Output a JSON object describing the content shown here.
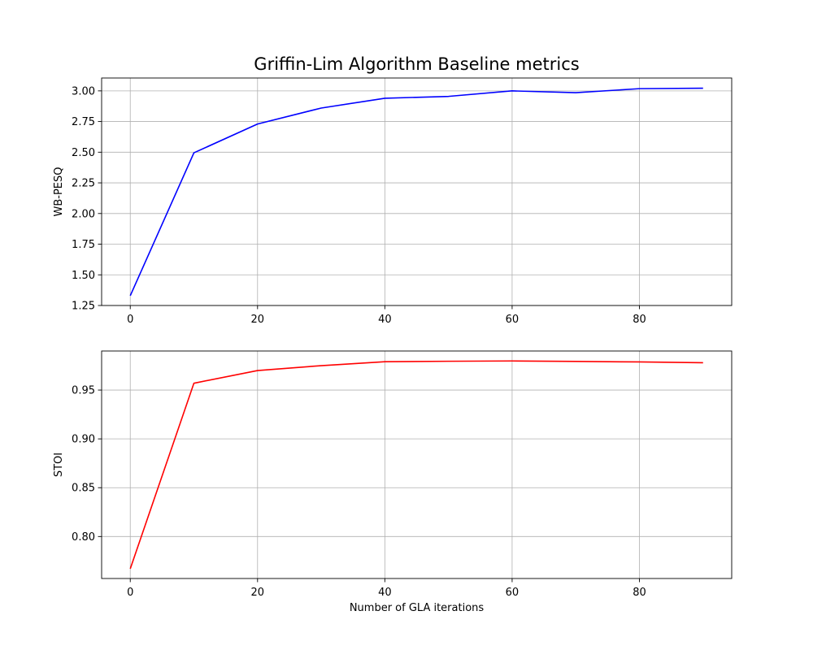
{
  "figure": {
    "title": "Griffin-Lim Algorithm Baseline metrics"
  },
  "chart_data": [
    {
      "type": "line",
      "title": "",
      "xlabel": "",
      "ylabel": "WB-PESQ",
      "x": [
        0,
        10,
        20,
        30,
        40,
        50,
        60,
        70,
        80,
        90
      ],
      "series": [
        {
          "values": [
            1.33,
            2.495,
            2.73,
            2.86,
            2.94,
            2.955,
            3.0,
            2.985,
            3.018,
            3.022
          ],
          "color": "#0000ff"
        }
      ],
      "xlim": [
        -4.5,
        94.5
      ],
      "ylim": [
        1.25,
        3.105
      ],
      "xticks": [
        0,
        20,
        40,
        60,
        80
      ],
      "yticks": [
        1.25,
        1.5,
        1.75,
        2.0,
        2.25,
        2.5,
        2.75,
        3.0
      ],
      "xtick_labels": [
        "0",
        "20",
        "40",
        "60",
        "80"
      ],
      "ytick_labels": [
        "1.25",
        "1.50",
        "1.75",
        "2.00",
        "2.25",
        "2.50",
        "2.75",
        "3.00"
      ],
      "grid": true
    },
    {
      "type": "line",
      "title": "",
      "xlabel": "Number of GLA iterations",
      "ylabel": "STOI",
      "x": [
        0,
        10,
        20,
        30,
        40,
        50,
        60,
        70,
        80,
        90
      ],
      "series": [
        {
          "values": [
            0.767,
            0.957,
            0.97,
            0.975,
            0.979,
            0.9795,
            0.9798,
            0.9793,
            0.9788,
            0.978
          ],
          "color": "#ff0000"
        }
      ],
      "xlim": [
        -4.5,
        94.5
      ],
      "ylim": [
        0.757,
        0.99
      ],
      "xticks": [
        0,
        20,
        40,
        60,
        80
      ],
      "yticks": [
        0.8,
        0.85,
        0.9,
        0.95
      ],
      "xtick_labels": [
        "0",
        "20",
        "40",
        "60",
        "80"
      ],
      "ytick_labels": [
        "0.80",
        "0.85",
        "0.90",
        "0.95"
      ],
      "grid": true
    }
  ]
}
